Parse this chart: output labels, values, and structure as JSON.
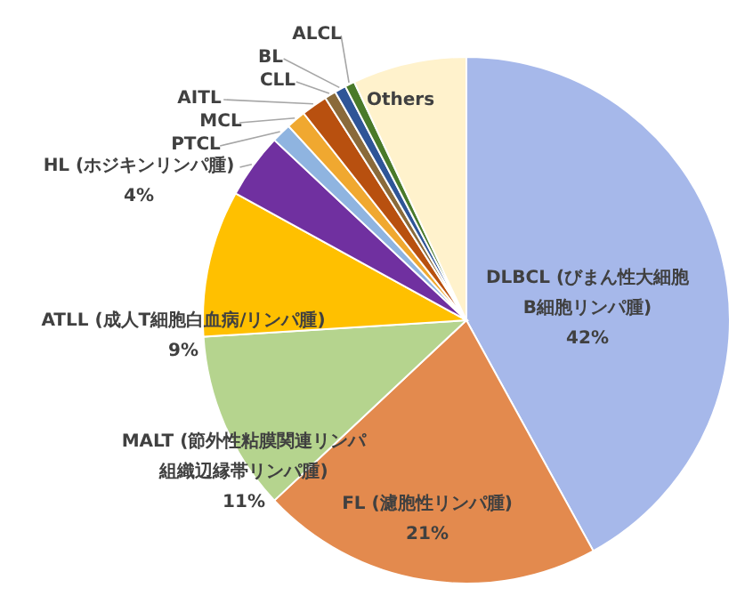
{
  "chart_data": {
    "type": "pie",
    "categories": [
      "DLBCL (びまん性大細胞B細胞リンパ腫)",
      "FL (濾胞性リンパ腫)",
      "MALT (節外性粘膜関連リンパ組織辺縁帯リンパ腫)",
      "ATLL (成人T細胞白血病/リンパ腫)",
      "HL (ホジキンリンパ腫)",
      "PTCL",
      "MCL",
      "AITL",
      "CLL",
      "BL",
      "ALCL",
      "Others"
    ],
    "values": [
      42,
      21,
      11,
      9,
      4,
      1.2,
      1.2,
      1.6,
      0.7,
      0.7,
      0.6,
      7
    ],
    "value_labels": [
      "42%",
      "21%",
      "11%",
      "9%",
      "4%",
      null,
      null,
      null,
      null,
      null,
      null,
      null
    ],
    "colors": [
      "#a6b8ea",
      "#e38a4e",
      "#b5d48e",
      "#ffc000",
      "#7030a0",
      "#8fb4e0",
      "#f0a830",
      "#b8500f",
      "#8a6a3a",
      "#2f5597",
      "#4a7a2a",
      "#fff2cc"
    ]
  }
}
